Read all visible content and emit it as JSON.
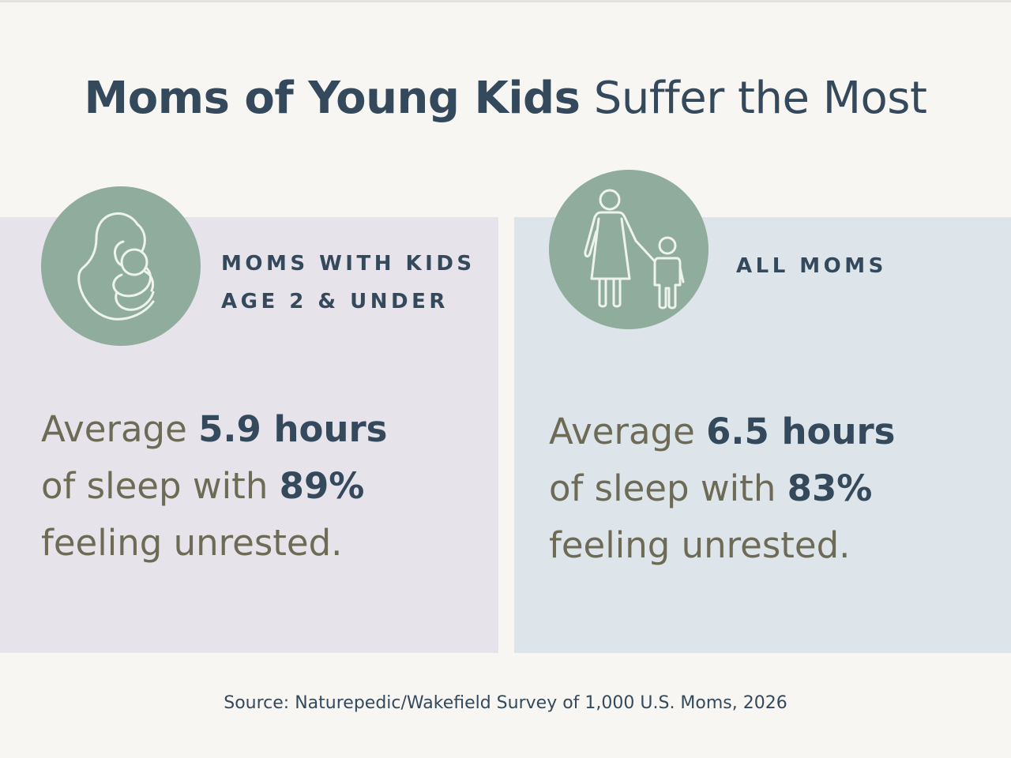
{
  "title": {
    "bold": "Moms of Young Kids",
    "regular": "Suffer the Most"
  },
  "panels": {
    "left": {
      "icon": "mother-holding-baby-icon",
      "label_line1": "MOMS WITH KIDS",
      "label_line2": "AGE 2 & UNDER",
      "stat_line1_prefix": "Average",
      "stat_hours": "5.9 hours",
      "stat_line2_prefix": "of sleep with",
      "stat_percent": "89%",
      "stat_line3": "feeling unrested."
    },
    "right": {
      "icon": "mother-and-child-icon",
      "label": "ALL MOMS",
      "stat_line1_prefix": "Average",
      "stat_hours": "6.5 hours",
      "stat_line2_prefix": "of sleep with",
      "stat_percent": "83%",
      "stat_line3": "feeling unrested."
    }
  },
  "source": "Source: Naturepedic/Wakefield Survey of 1,000 U.S. Moms, 2026",
  "colors": {
    "background": "#f7f6f2",
    "left_panel": "#e6e3ea",
    "right_panel": "#dde5ea",
    "icon_circle": "#8fac9c",
    "heading": "#34495b",
    "body_text": "#6d6a55"
  }
}
